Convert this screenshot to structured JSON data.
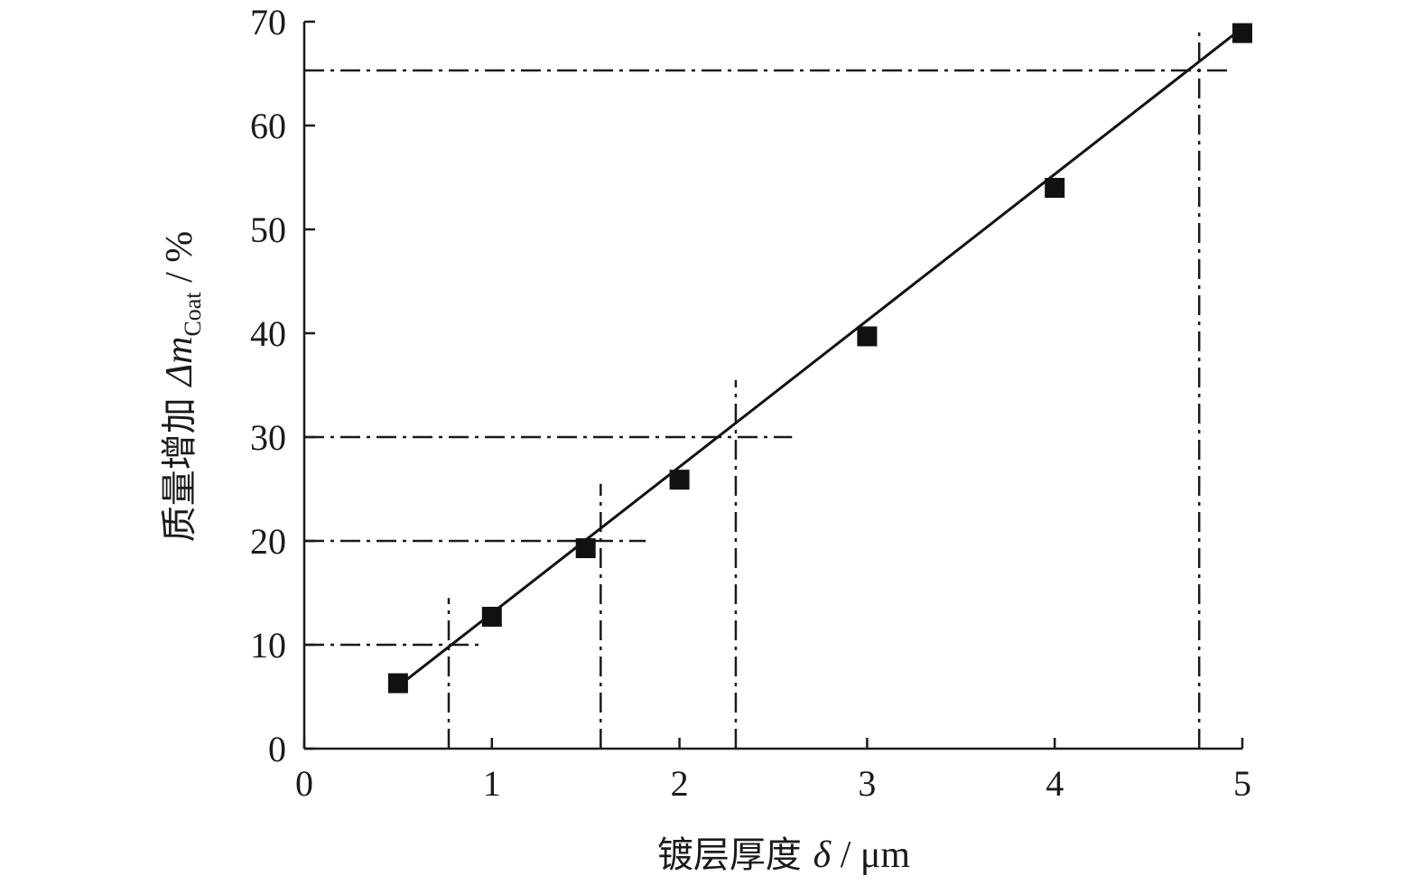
{
  "chart_data": {
    "type": "scatter",
    "title": "",
    "xlabel": {
      "main": "镀层厚度 ",
      "symbol": "δ",
      "unit": " / μm"
    },
    "ylabel": {
      "main": "质量增加 ",
      "symbol": "Δm",
      "subscript": "Coat",
      "unit": " / %"
    },
    "xlim": [
      0,
      5
    ],
    "ylim": [
      0,
      70
    ],
    "xticks": [
      "0",
      "1",
      "2",
      "3",
      "4",
      "5"
    ],
    "yticks": [
      "0",
      "10",
      "20",
      "30",
      "40",
      "50",
      "60",
      "70"
    ],
    "series": [
      {
        "marker": "filled-square",
        "x": [
          0.5,
          1.0,
          1.5,
          2.0,
          3.0,
          4.0,
          5.0
        ],
        "y": [
          6.3,
          12.7,
          19.3,
          25.9,
          39.7,
          54.0,
          68.9
        ]
      }
    ],
    "fit_line": {
      "x": [
        0.55,
        5.0
      ],
      "y": [
        6.7,
        69.4
      ]
    },
    "reference_lines": [
      {
        "y": 10,
        "x": 0.77,
        "h_to": 0.95,
        "v_to": 14.5
      },
      {
        "y": 20,
        "x": 1.58,
        "h_to": 1.82,
        "v_to": 25.5
      },
      {
        "y": 30,
        "x": 2.3,
        "h_to": 2.6,
        "v_to": 35.5
      },
      {
        "y": 65.3,
        "x": 4.77,
        "h_to": 4.95,
        "v_to": 69.5
      }
    ],
    "grid": false,
    "legend": "none",
    "colors": {
      "axis": "#1a1a1a",
      "marker": "#111111",
      "line": "#111111"
    }
  }
}
